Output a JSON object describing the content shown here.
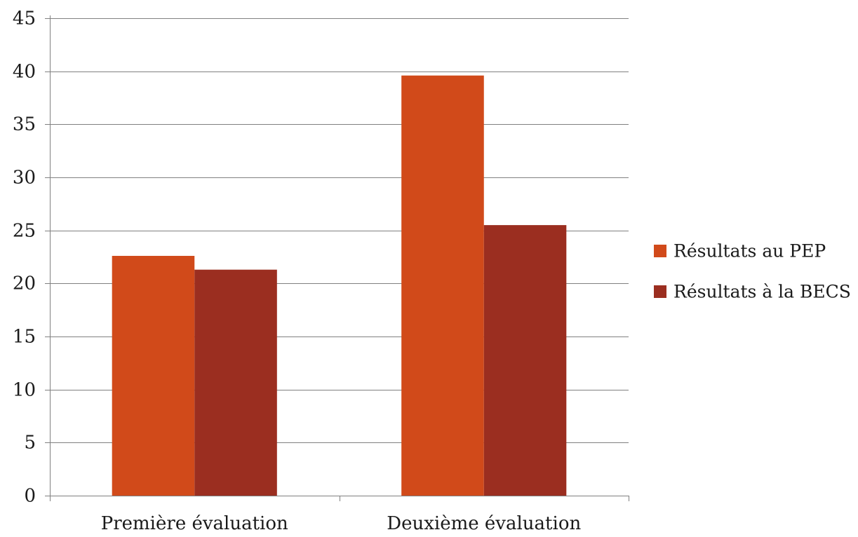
{
  "chart_data": {
    "type": "bar",
    "categories": [
      "Première évaluation",
      "Deuxième évaluation"
    ],
    "series": [
      {
        "name": "Résultats au PEP",
        "values": [
          22.6,
          39.6
        ],
        "color": "#d14a1a"
      },
      {
        "name": "Résultats à la BECS",
        "values": [
          21.3,
          25.5
        ],
        "color": "#9b2e20"
      }
    ],
    "ylim": [
      0,
      45
    ],
    "yticks": [
      0,
      5,
      10,
      15,
      20,
      25,
      30,
      35,
      40,
      45
    ],
    "grid": true,
    "legend_position": "right",
    "title": "",
    "xlabel": "",
    "ylabel": ""
  }
}
